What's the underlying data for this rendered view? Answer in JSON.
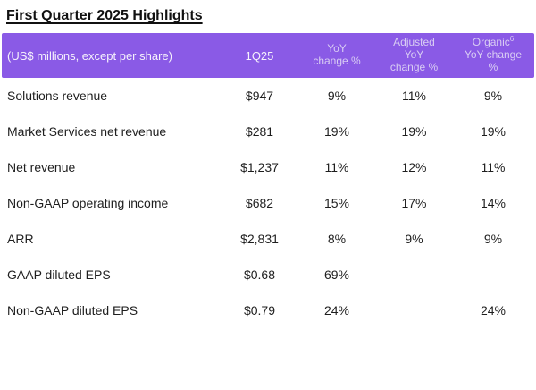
{
  "title": "First Quarter 2025 Highlights",
  "colors": {
    "header_bg": "#8a5ae6",
    "header_text_primary": "#f6f2fc",
    "header_text_secondary": "#d9cdf3",
    "body_text": "#1e1e1e",
    "title_text": "#111111"
  },
  "table": {
    "columns": [
      {
        "label": "(US$ millions, except per share)"
      },
      {
        "label": "1Q25"
      },
      {
        "label": "YoY\nchange %"
      },
      {
        "label": "Adjusted\nYoY\nchange %"
      },
      {
        "line1": "Organic",
        "sup": "6",
        "line2": "YoY change\n%"
      }
    ],
    "rows": [
      {
        "label": "Solutions revenue",
        "q1_25": "$947",
        "yoy_change": "9%",
        "adjusted_yoy_change": "11%",
        "organic_yoy_change": "9%"
      },
      {
        "label": "Market Services net revenue",
        "q1_25": "$281",
        "yoy_change": "19%",
        "adjusted_yoy_change": "19%",
        "organic_yoy_change": "19%"
      },
      {
        "label": "Net revenue",
        "q1_25": "$1,237",
        "yoy_change": "11%",
        "adjusted_yoy_change": "12%",
        "organic_yoy_change": "11%"
      },
      {
        "label": "Non-GAAP operating income",
        "q1_25": "$682",
        "yoy_change": "15%",
        "adjusted_yoy_change": "17%",
        "organic_yoy_change": "14%"
      },
      {
        "label": "ARR",
        "q1_25": "$2,831",
        "yoy_change": "8%",
        "adjusted_yoy_change": "9%",
        "organic_yoy_change": "9%"
      },
      {
        "label": "GAAP diluted EPS",
        "q1_25": "$0.68",
        "yoy_change": "69%",
        "adjusted_yoy_change": "",
        "organic_yoy_change": ""
      },
      {
        "label": "Non-GAAP diluted EPS",
        "q1_25": "$0.79",
        "yoy_change": "24%",
        "adjusted_yoy_change": "",
        "organic_yoy_change": "24%"
      }
    ]
  }
}
